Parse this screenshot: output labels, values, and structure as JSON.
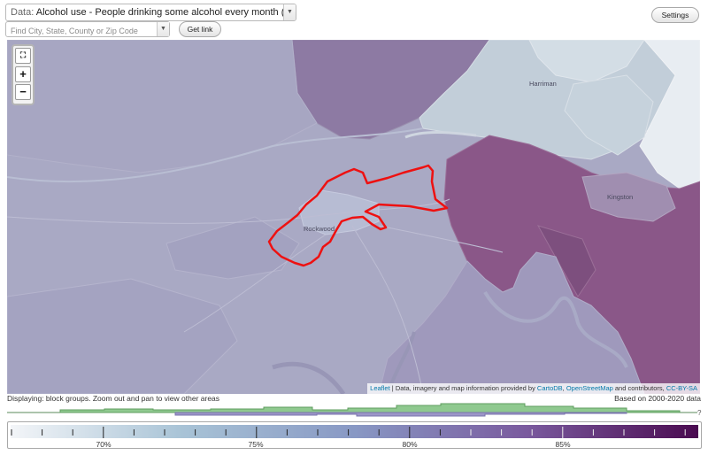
{
  "controls": {
    "data_prefix": "Data:",
    "data_selected": "Alcohol use - People drinking some alcohol every month (%)",
    "search_placeholder": "Find City, State, County or Zip Code",
    "get_link_label": "Get link",
    "settings_label": "Settings"
  },
  "map": {
    "places": [
      "Harriman",
      "Kingston",
      "Rockwood"
    ],
    "attribution": {
      "leaflet": "Leaflet",
      "text1": " | Data, imagery and map information provided by ",
      "cartodb": "CartoDB",
      "text2": ", ",
      "osm": "OpenStreetMap",
      "text3": " and contributors, ",
      "license": "CC-BY-SA"
    },
    "highlight_color": "#ee1111"
  },
  "status": {
    "displaying": "Displaying: block groups. Zoom out and pan to view other areas",
    "based_on": "Based on 2000-2020 data"
  },
  "histogram": {
    "question_mark": "?",
    "green_color": "#8fc98f",
    "purple_color": "#9c96c8"
  },
  "legend": {
    "ticks": [
      "70%",
      "75%",
      "80%",
      "85%"
    ],
    "colors": [
      "#f3f5f8",
      "#a8c3d6",
      "#8898c4",
      "#7a5a9e",
      "#4a0a50"
    ]
  }
}
